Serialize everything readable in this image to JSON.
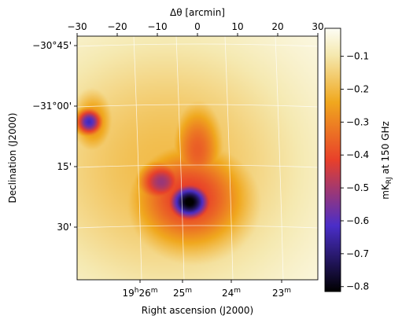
{
  "chart_data": {
    "type": "heatmap",
    "title": "",
    "xlabel": "Right ascension (J2000)",
    "ylabel": "Declination (J2000)",
    "top_axis": {
      "label": "Δθ [arcmin]",
      "range": [
        -30,
        30
      ],
      "ticks": [
        "−30",
        "−20",
        "−10",
        "0",
        "10",
        "20",
        "30"
      ]
    },
    "bottom_ticks": [
      {
        "text": "19",
        "sup1": "h",
        "mid": "26",
        "sup2": "m"
      },
      {
        "text": "25",
        "sup1": "m",
        "mid": "",
        "sup2": ""
      },
      {
        "text": "24",
        "sup1": "m",
        "mid": "",
        "sup2": ""
      },
      {
        "text": "23",
        "sup1": "m",
        "mid": "",
        "sup2": ""
      }
    ],
    "left_ticks": [
      "−30°45'",
      "−31°00'",
      "15'",
      "30'"
    ],
    "grid": true,
    "colorbar": {
      "label_main": "mK",
      "label_sub": "RJ",
      "label_rest": " at 150 GHz",
      "range": [
        -0.8,
        0.0
      ],
      "ticks": [
        "−0.1",
        "−0.2",
        "−0.3",
        "−0.4",
        "−0.5",
        "−0.6",
        "−0.7",
        "−0.8"
      ],
      "tick_values": [
        -0.1,
        -0.2,
        -0.3,
        -0.4,
        -0.5,
        -0.6,
        -0.7,
        -0.8
      ],
      "colors": [
        "#000000",
        "#4a2ec8",
        "#e8402a",
        "#f0a81e",
        "#f5e9b0",
        "#fdfdf5"
      ],
      "positions": [
        0.0,
        0.25,
        0.5,
        0.72,
        0.9,
        1.0
      ]
    },
    "map_features": [
      {
        "name": "central-cluster-core",
        "dx": -2,
        "dy": 11,
        "value": -0.82,
        "sx": 4,
        "sy": 3.5
      },
      {
        "name": "central-cluster-halo",
        "dx": -2,
        "dy": 10,
        "value": -0.42,
        "sx": 11,
        "sy": 10
      },
      {
        "name": "western-arm",
        "dx": -9,
        "dy": 6,
        "value": -0.5,
        "sx": 4.5,
        "sy": 4
      },
      {
        "name": "northern-filament",
        "dx": 0,
        "dy": -2,
        "value": -0.35,
        "sx": 5,
        "sy": 9
      },
      {
        "name": "northwest-clump",
        "dx": -27,
        "dy": -9,
        "value": -0.62,
        "sx": 2.5,
        "sy": 2.5
      },
      {
        "name": "northwest-halo",
        "dx": -26,
        "dy": -9,
        "value": -0.28,
        "sx": 4,
        "sy": 6
      },
      {
        "name": "diffuse-background",
        "dx": -8,
        "dy": 2,
        "value": -0.18,
        "sx": 26,
        "sy": 24
      }
    ]
  }
}
